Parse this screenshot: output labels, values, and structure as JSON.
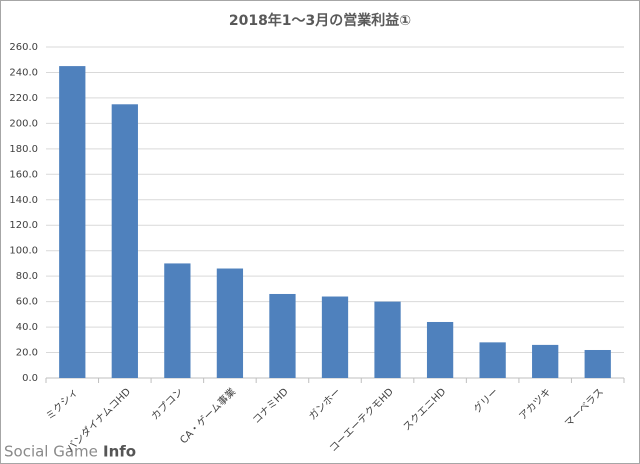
{
  "chart_data": {
    "type": "bar",
    "title": "2018年1～3月の営業利益①",
    "categories": [
      "ミクシィ",
      "バンダイナムコHD",
      "カプコン",
      "CA・ゲーム事業",
      "コナミHD",
      "ガンホー",
      "コーエーテクモHD",
      "スクエニHD",
      "グリー",
      "アカツキ",
      "マーベラス"
    ],
    "values": [
      245,
      215,
      90,
      86,
      66,
      64,
      60,
      44,
      28,
      26,
      22
    ],
    "color": "#4f81bd",
    "ylim": [
      0,
      260
    ],
    "yticks": [
      {
        "value": 0,
        "label": "0.0"
      },
      {
        "value": 20,
        "label": "20.0"
      },
      {
        "value": 40,
        "label": "40.0"
      },
      {
        "value": 60,
        "label": "60.0"
      },
      {
        "value": 80,
        "label": "80.0"
      },
      {
        "value": 100,
        "label": "100.0"
      },
      {
        "value": 120,
        "label": "120.0"
      },
      {
        "value": 140,
        "label": "140.0"
      },
      {
        "value": 160,
        "label": "160.0"
      },
      {
        "value": 180,
        "label": "180.0"
      },
      {
        "value": 200,
        "label": "200.0"
      },
      {
        "value": 220,
        "label": "220.0"
      },
      {
        "value": 240,
        "label": "240.0"
      },
      {
        "value": 260,
        "label": "260.0"
      }
    ],
    "grid": true
  },
  "watermark": {
    "brand": "Social Game",
    "suffix": "Info"
  }
}
